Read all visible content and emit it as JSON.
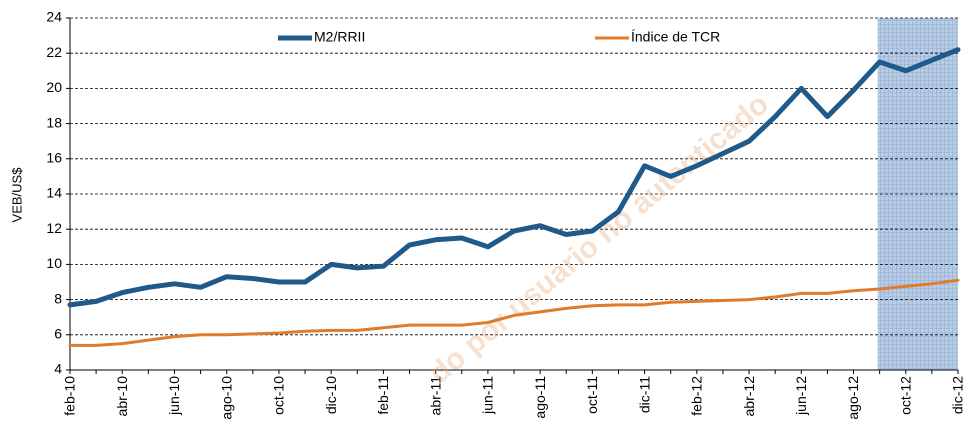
{
  "chart_data": {
    "type": "line",
    "y_label": "VEB/US$",
    "watermark": "do por usuario no autenticado",
    "categories": [
      "feb-10",
      null,
      "abr-10",
      null,
      "jun-10",
      null,
      "ago-10",
      null,
      "oct-10",
      null,
      "dic-10",
      null,
      "feb-11",
      null,
      "abr-11",
      null,
      "jun-11",
      null,
      "ago-11",
      null,
      "oct-11",
      null,
      "dic-11",
      null,
      "feb-12",
      null,
      "abr-12",
      null,
      "jun-12",
      null,
      "ago-12",
      null,
      "oct-12",
      null,
      "dic-12"
    ],
    "series": [
      {
        "name": "M2/RRII",
        "color": "#1f5a8a",
        "values": [
          7.7,
          7.9,
          8.4,
          8.7,
          8.9,
          8.7,
          9.3,
          9.2,
          9.0,
          9.0,
          10.0,
          9.8,
          9.9,
          11.1,
          11.4,
          11.5,
          11.0,
          11.9,
          12.2,
          11.7,
          11.9,
          13.0,
          15.6,
          15.0,
          15.6,
          16.3,
          17.0,
          18.4,
          20.0,
          18.4,
          19.9,
          21.5,
          21.0,
          21.6,
          22.2
        ]
      },
      {
        "name": "Índice de TCR",
        "color": "#e07b2a",
        "values": [
          5.4,
          5.4,
          5.5,
          5.7,
          5.9,
          6.0,
          6.0,
          6.05,
          6.1,
          6.2,
          6.25,
          6.25,
          6.4,
          6.55,
          6.55,
          6.55,
          6.7,
          7.1,
          7.3,
          7.5,
          7.65,
          7.7,
          7.7,
          7.85,
          7.9,
          7.95,
          8.0,
          8.15,
          8.35,
          8.35,
          8.5,
          8.6,
          8.75,
          8.9,
          9.1
        ]
      }
    ],
    "ylim": [
      4,
      24
    ],
    "yticks": [
      4,
      6,
      8,
      10,
      12,
      14,
      16,
      18,
      20,
      22,
      24
    ],
    "grid": true,
    "legend": "top",
    "shaded_range": [
      31,
      34
    ],
    "shade_color": "#b8cce4"
  }
}
